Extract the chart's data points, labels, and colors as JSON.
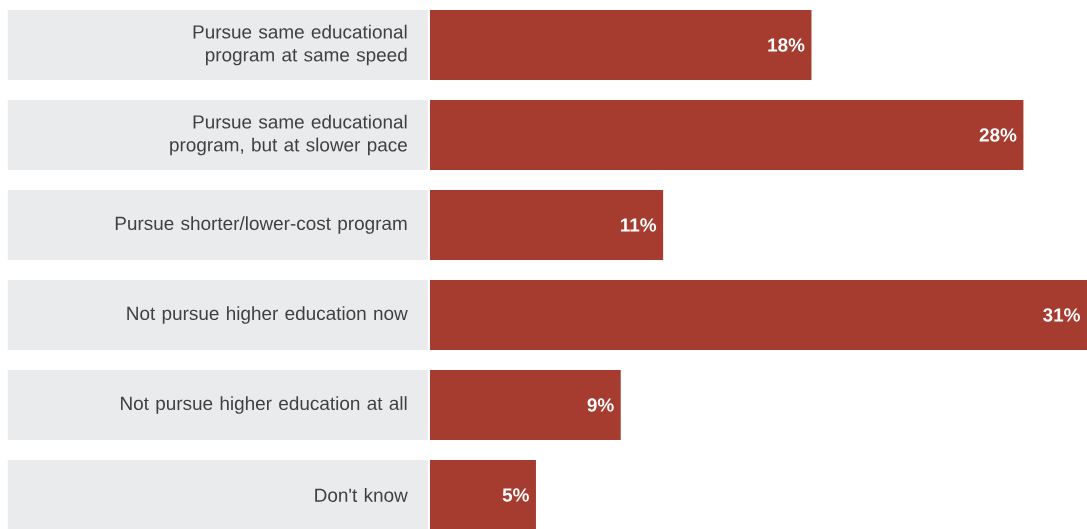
{
  "chart_data": {
    "type": "bar",
    "orientation": "horizontal",
    "categories": [
      "Pursue same educational program at same speed",
      "Pursue same educational program, but at slower pace",
      "Pursue shorter/lower-cost program",
      "Not pursue higher education now",
      "Not pursue higher education at all",
      "Don't know"
    ],
    "values": [
      18,
      28,
      11,
      31,
      9,
      5
    ],
    "value_labels": [
      "18%",
      "28%",
      "11%",
      "31%",
      "9%",
      "5%"
    ],
    "color": "#a63c30",
    "xlim": [
      0,
      31
    ]
  }
}
